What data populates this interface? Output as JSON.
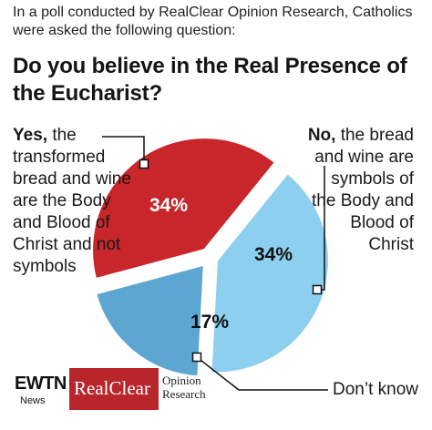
{
  "intro": "In a poll conducted by RealClear Opinion Research, Catholics were asked the following question:",
  "question": "Do you believe in the Real Presence of the Eucharist?",
  "answers": {
    "yes_lead": "Yes,",
    "yes_rest": " the transformed bread and wine are the Body and Blood of Christ and not symbols",
    "no_lead": "No,",
    "no_rest": " the bread and wine are symbols of the Body and Blood of Christ",
    "dont_know": "Don’t know"
  },
  "logo": {
    "ewtn": "EWTN",
    "news": "News",
    "realclear": "RealClear",
    "opinion": "Opinion",
    "research": "Research"
  },
  "colors": {
    "yes": "#c8262a",
    "no": "#8ccfee",
    "dont_know": "#5ea6d2",
    "logo_red": "#b8262c"
  },
  "chart_data": {
    "type": "pie",
    "title": "Do you believe in the Real Presence of the Eucharist?",
    "slices": [
      {
        "label": "Yes",
        "value": 34,
        "display": "34%",
        "color": "#c8262a"
      },
      {
        "label": "No",
        "value": 34,
        "display": "34%",
        "color": "#8ccfee"
      },
      {
        "label": "Don’t know",
        "value": 17,
        "display": "17%",
        "color": "#5ea6d2"
      }
    ]
  }
}
